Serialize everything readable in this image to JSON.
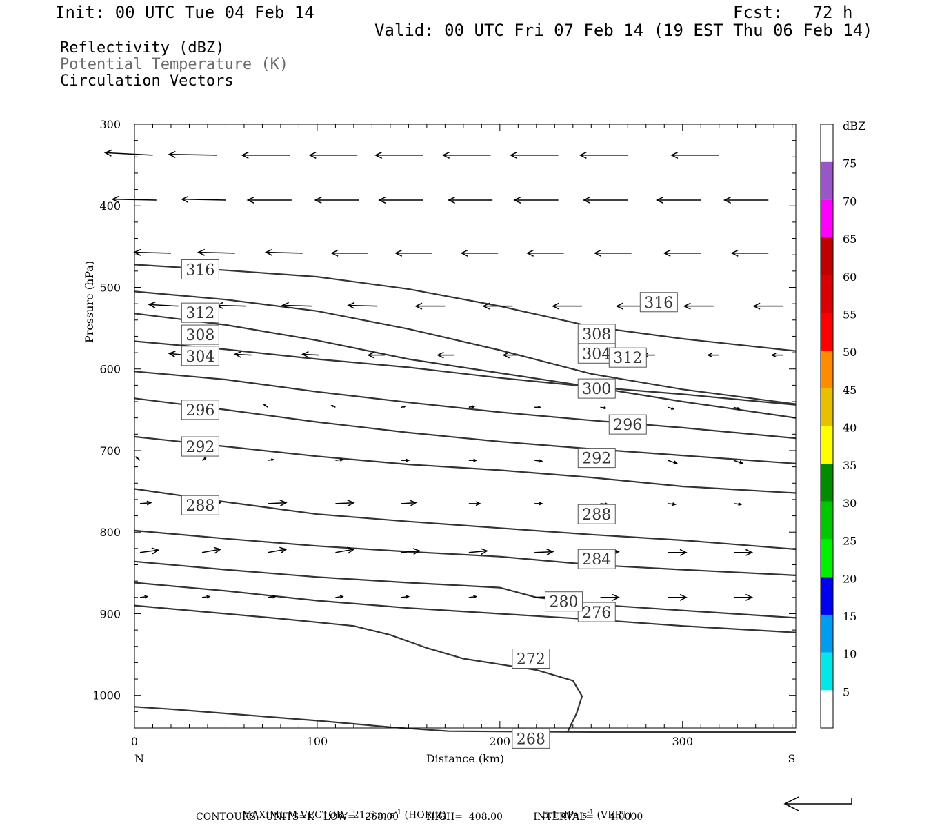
{
  "header": {
    "init": "Init: 00 UTC Tue 04 Feb 14",
    "fcst": "Fcst:   72 h",
    "valid": "Valid: 00 UTC Fri 07 Feb 14 (19 EST Thu 06 Feb 14)"
  },
  "fields": [
    {
      "label": "Reflectivity (dBZ)",
      "color": "#000000"
    },
    {
      "label": "Potential Temperature (K)",
      "color": "#6b6b6b"
    },
    {
      "label": "Circulation Vectors",
      "color": "#000000"
    }
  ],
  "footer": {
    "max_vector_prefix": "MAXIMUM VECTOR:  21.6 m s",
    "max_vector_horiz_exp": "-1",
    "max_vector_horiz_suffix": " (HORIZ)",
    "max_vector_vert_prefix": "5.1 dPa s",
    "max_vector_vert_exp": "-1",
    "max_vector_vert_suffix": " (VERT)",
    "contours": "CONTOURS:  UNITS=K   LOW=   268.00         HIGH=  408.00          INTERVAL=     4.0000"
  },
  "chart_data": {
    "type": "cross-section",
    "xlabel": "Distance (km)",
    "ylabel": "Pressure (hPa)",
    "x_start_label": "N",
    "x_end_label": "S",
    "xlim": [
      0,
      362
    ],
    "ylim": [
      300,
      1040
    ],
    "y_inverted": true,
    "x_ticks": [
      "0",
      "100",
      "200",
      "300"
    ],
    "x_tick_values": [
      0,
      100,
      200,
      300
    ],
    "y_ticks": [
      "300",
      "400",
      "500",
      "600",
      "700",
      "800",
      "900",
      "1000"
    ],
    "y_tick_values": [
      300,
      400,
      500,
      600,
      700,
      800,
      900,
      1000
    ],
    "colorbar": {
      "unit": "dBZ",
      "labels": [
        "5",
        "10",
        "15",
        "20",
        "25",
        "30",
        "35",
        "40",
        "45",
        "50",
        "55",
        "60",
        "65",
        "70",
        "75"
      ],
      "colors": [
        "#ffffff",
        "#00e8e8",
        "#009cf0",
        "#0000f0",
        "#00f000",
        "#00c800",
        "#008c00",
        "#ffff00",
        "#e8c000",
        "#ff8c00",
        "#ff0000",
        "#d80000",
        "#c00000",
        "#ff00ff",
        "#9a55c8",
        "#ffffff"
      ]
    },
    "isentropes": [
      {
        "theta": 268,
        "points": [
          [
            0,
            1014
          ],
          [
            20,
            1017
          ],
          [
            60,
            1024
          ],
          [
            100,
            1031
          ],
          [
            140,
            1039
          ],
          [
            172,
            1044
          ],
          [
            250,
            1045
          ],
          [
            362,
            1045
          ]
        ],
        "labels": [
          [
            217,
            1053
          ]
        ]
      },
      {
        "theta": 272,
        "points": [
          [
            0,
            890
          ],
          [
            40,
            898
          ],
          [
            80,
            906
          ],
          [
            120,
            915
          ],
          [
            140,
            926
          ],
          [
            160,
            942
          ],
          [
            180,
            955
          ],
          [
            200,
            962
          ],
          [
            220,
            969
          ],
          [
            240,
            982
          ],
          [
            245,
            1001
          ],
          [
            242,
            1022
          ],
          [
            237,
            1045
          ]
        ],
        "labels": [
          [
            217,
            955
          ]
        ]
      },
      {
        "theta": 276,
        "points": [
          [
            0,
            862
          ],
          [
            50,
            872
          ],
          [
            100,
            884
          ],
          [
            150,
            893
          ],
          [
            200,
            900
          ],
          [
            250,
            907
          ],
          [
            300,
            915
          ],
          [
            362,
            923
          ]
        ],
        "labels": [
          [
            253,
            898
          ]
        ]
      },
      {
        "theta": 280,
        "points": [
          [
            0,
            836
          ],
          [
            50,
            846
          ],
          [
            100,
            855
          ],
          [
            150,
            862
          ],
          [
            200,
            868
          ],
          [
            220,
            880
          ],
          [
            260,
            890
          ],
          [
            300,
            896
          ],
          [
            362,
            905
          ]
        ],
        "labels": [
          [
            235,
            885
          ]
        ]
      },
      {
        "theta": 284,
        "points": [
          [
            0,
            798
          ],
          [
            50,
            808
          ],
          [
            100,
            817
          ],
          [
            150,
            824
          ],
          [
            200,
            830
          ],
          [
            250,
            840
          ],
          [
            300,
            846
          ],
          [
            362,
            853
          ]
        ],
        "labels": [
          [
            253,
            833
          ]
        ]
      },
      {
        "theta": 288,
        "points": [
          [
            0,
            747
          ],
          [
            50,
            763
          ],
          [
            100,
            778
          ],
          [
            150,
            787
          ],
          [
            200,
            795
          ],
          [
            250,
            803
          ],
          [
            300,
            810
          ],
          [
            362,
            821
          ]
        ],
        "labels": [
          [
            36,
            767
          ],
          [
            253,
            778
          ]
        ]
      },
      {
        "theta": 292,
        "points": [
          [
            0,
            683
          ],
          [
            50,
            695
          ],
          [
            100,
            707
          ],
          [
            150,
            717
          ],
          [
            200,
            724
          ],
          [
            250,
            733
          ],
          [
            300,
            744
          ],
          [
            362,
            752
          ]
        ],
        "labels": [
          [
            36,
            695
          ],
          [
            253,
            709
          ]
        ]
      },
      {
        "theta": 296,
        "points": [
          [
            0,
            636
          ],
          [
            50,
            650
          ],
          [
            100,
            665
          ],
          [
            150,
            678
          ],
          [
            200,
            689
          ],
          [
            250,
            698
          ],
          [
            300,
            706
          ],
          [
            362,
            716
          ]
        ],
        "labels": [
          [
            36,
            650
          ],
          [
            270,
            668
          ]
        ]
      },
      {
        "theta": 300,
        "points": [
          [
            0,
            603
          ],
          [
            50,
            613
          ],
          [
            100,
            628
          ],
          [
            150,
            641
          ],
          [
            200,
            653
          ],
          [
            250,
            663
          ],
          [
            300,
            672
          ],
          [
            362,
            685
          ]
        ],
        "labels": [
          [
            253,
            624
          ]
        ]
      },
      {
        "theta": 304,
        "points": [
          [
            0,
            566
          ],
          [
            50,
            576
          ],
          [
            100,
            588
          ],
          [
            150,
            598
          ],
          [
            200,
            611
          ],
          [
            250,
            622
          ],
          [
            300,
            631
          ],
          [
            362,
            644
          ]
        ],
        "labels": [
          [
            36,
            584
          ],
          [
            253,
            581
          ]
        ]
      },
      {
        "theta": 308,
        "points": [
          [
            0,
            532
          ],
          [
            50,
            546
          ],
          [
            100,
            565
          ],
          [
            150,
            588
          ],
          [
            200,
            605
          ],
          [
            250,
            622
          ],
          [
            300,
            640
          ],
          [
            362,
            660
          ]
        ],
        "labels": [
          [
            36,
            558
          ],
          [
            253,
            557
          ]
        ]
      },
      {
        "theta": 312,
        "points": [
          [
            0,
            505
          ],
          [
            50,
            515
          ],
          [
            100,
            529
          ],
          [
            150,
            551
          ],
          [
            200,
            577
          ],
          [
            250,
            606
          ],
          [
            300,
            625
          ],
          [
            362,
            643
          ]
        ],
        "labels": [
          [
            36,
            531
          ],
          [
            270,
            586
          ]
        ]
      },
      {
        "theta": 316,
        "points": [
          [
            0,
            472
          ],
          [
            50,
            479
          ],
          [
            100,
            487
          ],
          [
            150,
            502
          ],
          [
            200,
            523
          ],
          [
            250,
            548
          ],
          [
            300,
            563
          ],
          [
            362,
            578
          ]
        ],
        "labels": [
          [
            36,
            478
          ],
          [
            287,
            518
          ]
        ]
      }
    ],
    "vectors": [
      [
        10,
        338,
        -26,
        -3
      ],
      [
        45,
        338,
        -26,
        -1
      ],
      [
        85,
        338,
        -26,
        0
      ],
      [
        122,
        338,
        -26,
        0
      ],
      [
        158,
        338,
        -26,
        0
      ],
      [
        195,
        338,
        -26,
        0
      ],
      [
        232,
        338,
        -26,
        0
      ],
      [
        270,
        338,
        -26,
        0
      ],
      [
        320,
        338,
        -26,
        0
      ],
      [
        12,
        393,
        -24,
        -1
      ],
      [
        50,
        393,
        -24,
        -1
      ],
      [
        86,
        393,
        -24,
        0
      ],
      [
        123,
        393,
        -24,
        0
      ],
      [
        158,
        393,
        -24,
        0
      ],
      [
        196,
        393,
        -24,
        0
      ],
      [
        232,
        393,
        -24,
        0
      ],
      [
        270,
        393,
        -24,
        0
      ],
      [
        310,
        393,
        -24,
        0
      ],
      [
        347,
        393,
        -24,
        0
      ],
      [
        20,
        458,
        -20,
        -1
      ],
      [
        55,
        458,
        -20,
        -1
      ],
      [
        92,
        458,
        -20,
        -1
      ],
      [
        128,
        458,
        -20,
        0
      ],
      [
        163,
        458,
        -20,
        0
      ],
      [
        199,
        458,
        -20,
        0
      ],
      [
        235,
        458,
        -20,
        0
      ],
      [
        272,
        458,
        -20,
        0
      ],
      [
        310,
        458,
        -20,
        0
      ],
      [
        347,
        458,
        -20,
        0
      ],
      [
        24,
        523,
        -16,
        -2
      ],
      [
        61,
        523,
        -16,
        -1
      ],
      [
        97,
        523,
        -16,
        -1
      ],
      [
        133,
        523,
        -16,
        -1
      ],
      [
        170,
        523,
        -16,
        0
      ],
      [
        207,
        523,
        -16,
        0
      ],
      [
        245,
        523,
        -16,
        0
      ],
      [
        280,
        523,
        -16,
        0
      ],
      [
        317,
        523,
        -16,
        0
      ],
      [
        355,
        523,
        -16,
        0
      ],
      [
        28,
        583,
        -9,
        -2
      ],
      [
        64,
        583,
        -9,
        -1
      ],
      [
        101,
        583,
        -9,
        -1
      ],
      [
        137,
        583,
        -9,
        0
      ],
      [
        175,
        583,
        -9,
        0
      ],
      [
        211,
        583,
        -9,
        0
      ],
      [
        250,
        583,
        -6,
        0
      ],
      [
        285,
        583,
        -6,
        0
      ],
      [
        320,
        583,
        -6,
        0
      ],
      [
        355,
        583,
        -6,
        0
      ],
      [
        36,
        647,
        -2,
        -4
      ],
      [
        73,
        647,
        -2,
        -3
      ],
      [
        110,
        647,
        -2,
        -2
      ],
      [
        146,
        647,
        2,
        -1
      ],
      [
        183,
        647,
        3,
        -1
      ],
      [
        219,
        647,
        3,
        0
      ],
      [
        255,
        647,
        3,
        1
      ],
      [
        292,
        647,
        3,
        2
      ],
      [
        328,
        647,
        3,
        2
      ],
      [
        3,
        712,
        -2,
        -4
      ],
      [
        37,
        712,
        2,
        -3
      ],
      [
        73,
        712,
        3,
        -1
      ],
      [
        110,
        712,
        4,
        -1
      ],
      [
        146,
        712,
        4,
        0
      ],
      [
        183,
        712,
        4,
        0
      ],
      [
        219,
        712,
        4,
        1
      ],
      [
        255,
        712,
        5,
        2
      ],
      [
        292,
        712,
        5,
        4
      ],
      [
        328,
        712,
        5,
        4
      ],
      [
        3,
        765,
        6,
        -1
      ],
      [
        37,
        765,
        10,
        -1
      ],
      [
        73,
        765,
        10,
        -1
      ],
      [
        110,
        765,
        10,
        -1
      ],
      [
        146,
        765,
        8,
        -1
      ],
      [
        183,
        765,
        6,
        0
      ],
      [
        219,
        765,
        4,
        0
      ],
      [
        255,
        765,
        4,
        1
      ],
      [
        292,
        765,
        4,
        1
      ],
      [
        328,
        765,
        4,
        1
      ],
      [
        3,
        825,
        10,
        -3
      ],
      [
        37,
        825,
        10,
        -4
      ],
      [
        73,
        825,
        10,
        -4
      ],
      [
        110,
        825,
        10,
        -4
      ],
      [
        146,
        825,
        10,
        -2
      ],
      [
        183,
        825,
        10,
        -2
      ],
      [
        219,
        825,
        10,
        -1
      ],
      [
        255,
        825,
        10,
        -1
      ],
      [
        292,
        825,
        10,
        0
      ],
      [
        328,
        825,
        10,
        0
      ],
      [
        3,
        880,
        4,
        -1
      ],
      [
        37,
        880,
        4,
        -1
      ],
      [
        73,
        880,
        4,
        -1
      ],
      [
        110,
        880,
        4,
        -1
      ],
      [
        146,
        880,
        4,
        -1
      ],
      [
        183,
        880,
        4,
        -1
      ],
      [
        219,
        880,
        10,
        -1
      ],
      [
        255,
        880,
        10,
        0
      ],
      [
        292,
        880,
        10,
        0
      ],
      [
        328,
        880,
        10,
        0
      ]
    ]
  }
}
